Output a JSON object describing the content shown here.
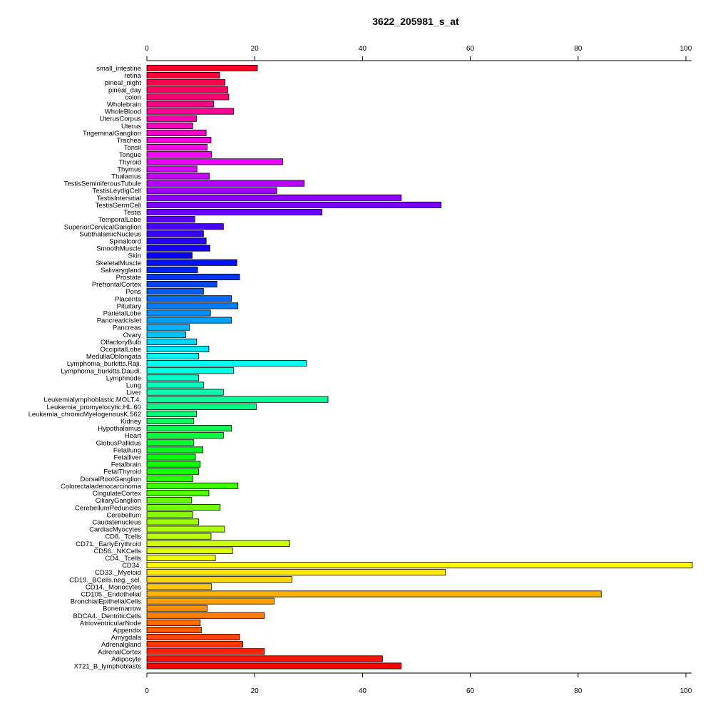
{
  "chart_data": {
    "type": "bar",
    "orientation": "horizontal",
    "title": "3622_205981_s_at",
    "xlabel": "",
    "ylabel": "",
    "xlim": [
      0,
      100
    ],
    "x_ticks": [
      0,
      20,
      40,
      60,
      80,
      100
    ],
    "grid": false,
    "legend": "none",
    "categories": [
      "small_intestine",
      "retina",
      "pineal_night",
      "pineal_day",
      "colon",
      "Wholebrain",
      "WholeBlood",
      "UterusCorpus",
      "Uterus",
      "TrigeminalGanglion",
      "Trachea",
      "Tonsil",
      "Tongue",
      "Thyroid",
      "Thymus",
      "Thalamus",
      "TestisSeminiferousTubule",
      "TestisLeydigCell",
      "TestisIntersitial",
      "TestisGermCell",
      "Testis",
      "TemporalLobe",
      "SuperiorCervicalGanglion",
      "SubthalamicNucleus",
      "Spinalcord",
      "SmoothMuscle",
      "Skin",
      "SkeletalMuscle",
      "Salivarygland",
      "Prostate",
      "PrefrontalCortex",
      "Pons",
      "Placenta",
      "Pituitary",
      "ParietalLobe",
      "PancreaticIslet",
      "Pancreas",
      "Ovary",
      "OlfactoryBulb",
      "OccipitalLobe",
      "MedullaOblongata",
      "Lymphoma_burkitts.Raji.",
      "Lymphoma_burkitts.Daudi.",
      "Lymphnode",
      "Lung",
      "Liver",
      "Leukemialymphoblastic.MOLT.4.",
      "Leukemia_promyelocytic.HL.60",
      "Leukemia_chronicMyelogenousK.562",
      "Kidney",
      "Hypothalamus",
      "Heart",
      "GlobusPallidus",
      "Fetallung",
      "Fetalliver",
      "Fetalbrain",
      "FetalThyroid",
      "DorsalRootGanglion",
      "Colorectaladenocarcinoma",
      "CingulateCortex",
      "CiliaryGanglion",
      "CerebellumPeduncles",
      "Cerebellum",
      "Caudatenucleus",
      "CardiacMyocytes",
      "CD8._Tcells",
      "CD71._EarlyErythroid",
      "CD56._NKCells",
      "CD4._Tcells",
      "CD34.",
      "CD33._Myeloid",
      "CD19._BCells.neg._sel.",
      "CD14._Monocytes",
      "CD105._Endothelial",
      "BronchialEpithelialCells",
      "Bonemarrow",
      "BDCA4._DentriticCells",
      "AtrioventricularNode",
      "Appendix",
      "Amygdala",
      "Adrenalgland",
      "AdrenalCortex",
      "Adipocyte",
      "X721_B_lymphoblasts"
    ],
    "values": [
      20.5,
      13.5,
      14.5,
      15.0,
      15.2,
      12.4,
      16.1,
      9.2,
      8.5,
      11.0,
      11.9,
      11.2,
      12.0,
      25.2,
      9.3,
      11.6,
      29.2,
      24.1,
      47.2,
      54.6,
      32.5,
      8.9,
      14.2,
      10.5,
      11.0,
      11.7,
      8.4,
      16.7,
      9.4,
      17.2,
      13.0,
      10.5,
      15.7,
      16.9,
      11.8,
      15.7,
      7.9,
      7.2,
      9.2,
      11.5,
      9.6,
      29.6,
      16.1,
      9.6,
      10.5,
      14.2,
      33.6,
      20.3,
      9.2,
      8.7,
      15.7,
      14.2,
      8.7,
      10.4,
      9.0,
      9.9,
      9.6,
      8.5,
      16.9,
      11.5,
      8.3,
      13.6,
      8.5,
      9.6,
      14.4,
      11.9,
      26.5,
      15.9,
      12.7,
      101.5,
      55.4,
      26.9,
      12.0,
      84.3,
      23.6,
      11.2,
      21.8,
      9.9,
      10.1,
      17.2,
      17.8,
      21.8,
      43.7,
      47.2
    ]
  }
}
